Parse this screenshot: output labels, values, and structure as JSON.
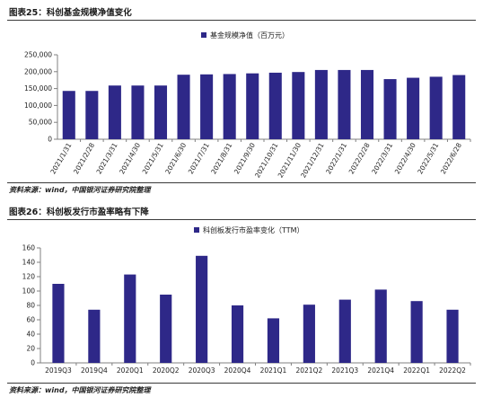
{
  "figures": [
    {
      "title": "图表25：科创基金规模净值变化",
      "source": "资料来源：wind，中国银河证券研究院整理"
    },
    {
      "title": "图表26：科创板发行市盈率略有下降",
      "source": "资料来源：wind，中国银河证券研究院整理"
    }
  ],
  "colors": {
    "bar": "#2e2888",
    "axis": "#808080",
    "rule": "#3a3a3a"
  },
  "chart_data": [
    {
      "type": "bar",
      "title": "",
      "legend": "基金规模净值（百万元）",
      "legend_position": "top-center",
      "categories": [
        "2021/1/31",
        "2021/2/28",
        "2021/3/31",
        "2021/4/30",
        "2021/5/31",
        "2021/6/30",
        "2021/7/31",
        "2021/8/31",
        "2021/9/30",
        "2021/10/31",
        "2021/11/30",
        "2021/12/31",
        "2022/1/31",
        "2022/2/28",
        "2022/3/31",
        "2022/4/30",
        "2022/5/31",
        "2022/6/28"
      ],
      "values": [
        143000,
        143000,
        159000,
        159000,
        159000,
        191000,
        192000,
        193000,
        195000,
        197000,
        199000,
        205000,
        205000,
        205000,
        178000,
        182000,
        185000,
        190000
      ],
      "ylim": [
        0,
        250000
      ],
      "yticks": [
        "0",
        "50,000",
        "100,000",
        "150,000",
        "200,000",
        "250,000"
      ],
      "ytick_values": [
        0,
        50000,
        100000,
        150000,
        200000,
        250000
      ],
      "grid": false
    },
    {
      "type": "bar",
      "title": "",
      "legend": "科创板发行市盈率变化（TTM）",
      "legend_position": "top-center",
      "categories": [
        "2019Q3",
        "2019Q4",
        "2020Q1",
        "2020Q2",
        "2020Q3",
        "2020Q4",
        "2021Q1",
        "2021Q2",
        "2021Q3",
        "2021Q4",
        "2022Q1",
        "2022Q2"
      ],
      "values": [
        110,
        74,
        123,
        95,
        149,
        80,
        62,
        81,
        88,
        102,
        86,
        74
      ],
      "ylim": [
        0,
        160
      ],
      "yticks": [
        "0",
        "20",
        "40",
        "60",
        "80",
        "100",
        "120",
        "140",
        "160"
      ],
      "ytick_values": [
        0,
        20,
        40,
        60,
        80,
        100,
        120,
        140,
        160
      ],
      "grid": false
    }
  ]
}
